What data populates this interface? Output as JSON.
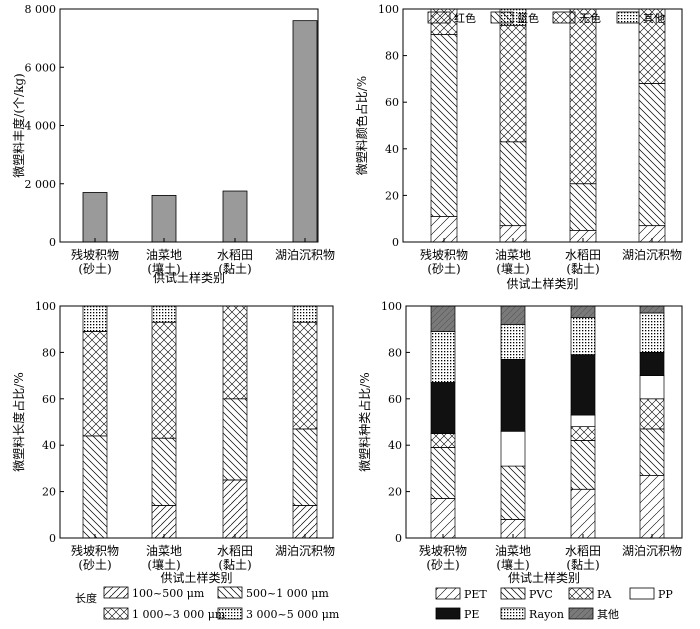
{
  "chart_data": [
    {
      "type": "bar",
      "panel": "abundance",
      "ylabel": "微塑料丰度/(个/kg)",
      "xlabel": "供试土样类别",
      "ylim": [
        0,
        8000
      ],
      "yticks": [
        "0",
        "2 000",
        "4 000",
        "6 000",
        "8 000"
      ],
      "categories": [
        [
          "残坡积物",
          "(砂土)"
        ],
        [
          "油菜地",
          "(壤土)"
        ],
        [
          "水稻田",
          "(黏土)"
        ],
        [
          "湖泊沉积物",
          ""
        ]
      ],
      "values": [
        1700,
        1600,
        1750,
        7600
      ],
      "bar_color": "#9a9a9a"
    },
    {
      "type": "bar",
      "stacked": true,
      "panel": "color",
      "ylabel": "微塑料颜色占比/%",
      "xlabel": "供试土样类别",
      "ylim": [
        0,
        100
      ],
      "yticks": [
        "0",
        "20",
        "40",
        "60",
        "80",
        "100"
      ],
      "categories": [
        [
          "残坡积物",
          "(砂土)"
        ],
        [
          "油菜地",
          "(壤土)"
        ],
        [
          "水稻田",
          "(黏土)"
        ],
        [
          "湖泊沉积物",
          ""
        ]
      ],
      "series": [
        {
          "name": "红色",
          "pattern": "diag-sparse",
          "values": [
            11,
            7,
            5,
            7
          ]
        },
        {
          "name": "蓝色",
          "pattern": "diag-back",
          "values": [
            78,
            36,
            20,
            61
          ]
        },
        {
          "name": "无色",
          "pattern": "cross",
          "values": [
            11,
            50,
            75,
            32
          ]
        },
        {
          "name": "其他",
          "pattern": "dots",
          "values": [
            0,
            7,
            0,
            0
          ]
        }
      ],
      "legend": "top"
    },
    {
      "type": "bar",
      "stacked": true,
      "panel": "length",
      "ylabel": "微塑料长度占比/%",
      "xlabel": "供试土样类别",
      "ylim": [
        0,
        100
      ],
      "yticks": [
        "0",
        "20",
        "40",
        "60",
        "80",
        "100"
      ],
      "categories": [
        [
          "残坡积物",
          "(砂土)"
        ],
        [
          "油菜地",
          "(壤土)"
        ],
        [
          "水稻田",
          "(黏土)"
        ],
        [
          "湖泊沉积物",
          ""
        ]
      ],
      "legend_title": "长度",
      "series": [
        {
          "name": "100~500 μm",
          "pattern": "diag",
          "values": [
            0,
            14,
            25,
            14
          ]
        },
        {
          "name": "500~1 000 μm",
          "pattern": "diag-back",
          "values": [
            44,
            29,
            35,
            33
          ]
        },
        {
          "name": "1 000~3 000 μm",
          "pattern": "cross",
          "values": [
            45,
            50,
            40,
            46
          ]
        },
        {
          "name": "3 000~5 000 μm",
          "pattern": "dots",
          "values": [
            11,
            7,
            0,
            7
          ]
        }
      ],
      "legend": "bottom"
    },
    {
      "type": "bar",
      "stacked": true,
      "panel": "polymer",
      "ylabel": "微塑料种类占比/%",
      "xlabel": "供试土样类别",
      "ylim": [
        0,
        100
      ],
      "yticks": [
        "0",
        "20",
        "40",
        "60",
        "80",
        "100"
      ],
      "categories": [
        [
          "残坡积物",
          "(砂土)"
        ],
        [
          "油菜地",
          "(壤土)"
        ],
        [
          "水稻田",
          "(黏土)"
        ],
        [
          "湖泊沉积物",
          ""
        ]
      ],
      "series": [
        {
          "name": "PET",
          "pattern": "diag-sparse",
          "values": [
            17,
            8,
            21,
            27
          ]
        },
        {
          "name": "PVC",
          "pattern": "diag-back",
          "values": [
            22,
            23,
            21,
            20
          ]
        },
        {
          "name": "PA",
          "pattern": "cross",
          "values": [
            6,
            0,
            6,
            13
          ]
        },
        {
          "name": "PP",
          "pattern": "white",
          "values": [
            0,
            15,
            5,
            10
          ]
        },
        {
          "name": "PE",
          "pattern": "black",
          "values": [
            22,
            31,
            26,
            10
          ]
        },
        {
          "name": "Rayon",
          "pattern": "dots",
          "values": [
            22,
            15,
            16,
            17
          ]
        },
        {
          "name": "其他",
          "pattern": "gray",
          "values": [
            11,
            8,
            5,
            3
          ]
        }
      ],
      "legend": "bottom"
    }
  ]
}
